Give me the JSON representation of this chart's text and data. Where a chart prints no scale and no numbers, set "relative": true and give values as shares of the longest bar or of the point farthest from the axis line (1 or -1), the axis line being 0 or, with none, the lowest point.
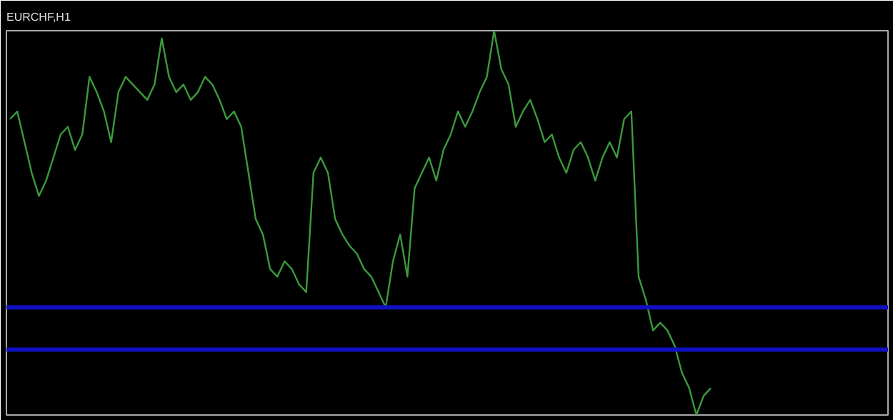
{
  "chart_data": {
    "type": "line",
    "title": "EURCHF,H1",
    "relative": true,
    "grid": false,
    "categories": [
      null,
      null,
      null,
      null,
      null,
      null,
      null,
      null,
      null,
      null,
      null,
      null,
      null,
      null,
      null,
      null,
      null,
      null,
      null,
      null,
      null,
      null,
      null,
      null,
      null,
      null,
      null,
      null,
      null,
      null,
      null,
      null,
      null,
      null,
      null,
      null,
      null,
      null,
      null,
      null,
      null,
      null,
      null,
      null,
      null,
      null,
      null,
      null,
      null,
      null,
      null,
      null,
      null,
      null,
      null,
      null,
      null,
      null,
      null,
      null,
      null,
      null,
      null,
      null,
      null,
      null,
      null,
      null,
      null,
      null,
      null,
      null,
      null,
      null,
      null,
      null,
      null,
      null,
      null,
      null,
      null,
      null,
      null,
      null,
      null,
      null,
      null,
      null,
      null,
      null,
      null,
      null,
      null,
      null,
      null,
      null,
      null,
      null
    ],
    "series": [
      {
        "color": "#3c9a3c",
        "values": [
          0.77,
          0.79,
          0.71,
          0.63,
          0.57,
          0.61,
          0.67,
          0.73,
          0.75,
          0.69,
          0.73,
          0.88,
          0.84,
          0.79,
          0.71,
          0.84,
          0.88,
          0.86,
          0.84,
          0.82,
          0.86,
          0.98,
          0.88,
          0.84,
          0.86,
          0.82,
          0.84,
          0.88,
          0.86,
          0.82,
          0.77,
          0.79,
          0.75,
          0.63,
          0.51,
          0.47,
          0.38,
          0.36,
          0.4,
          0.38,
          0.34,
          0.32,
          0.63,
          0.67,
          0.63,
          0.51,
          0.47,
          0.44,
          0.42,
          0.38,
          0.36,
          0.32,
          0.28,
          0.4,
          0.47,
          0.36,
          0.59,
          0.63,
          0.67,
          0.61,
          0.69,
          0.73,
          0.79,
          0.75,
          0.79,
          0.84,
          0.88,
          1,
          0.9,
          0.86,
          0.75,
          0.79,
          0.82,
          0.77,
          0.71,
          0.73,
          0.67,
          0.63,
          0.69,
          0.71,
          0.67,
          0.61,
          0.67,
          0.71,
          0.67,
          0.77,
          0.79,
          0.36,
          0.3,
          0.22,
          0.24,
          0.22,
          0.18,
          0.11,
          0.07,
          0,
          0.05,
          0.07
        ]
      }
    ],
    "ref_lines": [
      {
        "axis": "y",
        "value": 0.28,
        "color": "#1010c0"
      },
      {
        "axis": "y",
        "value": 0.17,
        "color": "#1010c0"
      }
    ]
  }
}
